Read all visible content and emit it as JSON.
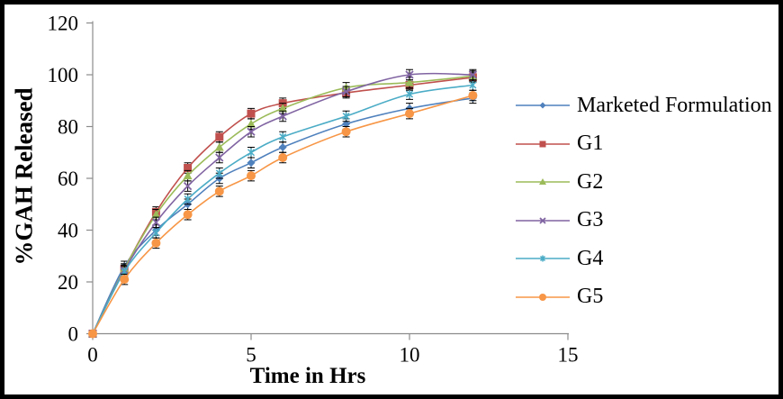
{
  "frame": {
    "background": "#ffffff",
    "border_color": "#000000"
  },
  "chart_data": {
    "type": "line",
    "title": "",
    "xlabel": "Time in Hrs",
    "ylabel": "%GAH Released",
    "x": [
      0,
      1,
      2,
      3,
      4,
      5,
      6,
      8,
      10,
      12
    ],
    "series": [
      {
        "name": "Marketed Formulation",
        "color": "#4F81BD",
        "marker": "diamond",
        "values": [
          0,
          26,
          40,
          50,
          60,
          66,
          72,
          81,
          87,
          91
        ]
      },
      {
        "name": "G1",
        "color": "#C0504D",
        "marker": "square",
        "values": [
          0,
          25,
          47,
          64,
          76,
          85,
          89,
          93,
          96,
          99
        ]
      },
      {
        "name": "G2",
        "color": "#9BBB59",
        "marker": "triangle",
        "values": [
          0,
          25,
          46,
          61,
          72,
          81,
          87,
          95,
          97,
          99.5
        ]
      },
      {
        "name": "G3",
        "color": "#8064A2",
        "marker": "x",
        "values": [
          0,
          24.5,
          43,
          57,
          68,
          78,
          84,
          93.5,
          100,
          100
        ]
      },
      {
        "name": "G4",
        "color": "#4BACC6",
        "marker": "asterisk",
        "values": [
          0,
          24,
          39,
          52,
          62,
          70,
          76,
          84,
          92.5,
          96
        ]
      },
      {
        "name": "G5",
        "color": "#F79646",
        "marker": "circle",
        "values": [
          0,
          21,
          35,
          46,
          55,
          61,
          68,
          78,
          85,
          92
        ]
      }
    ],
    "error_bar": 2,
    "xlim": [
      0,
      15
    ],
    "ylim": [
      0,
      120
    ],
    "xticks": [
      0,
      5,
      10,
      15
    ],
    "yticks": [
      0,
      20,
      40,
      60,
      80,
      100,
      120
    ],
    "grid": false,
    "legend_position": "right",
    "axis_color": "#8C8C8C",
    "error_bar_color": "#000000",
    "text_color": "#000000"
  }
}
